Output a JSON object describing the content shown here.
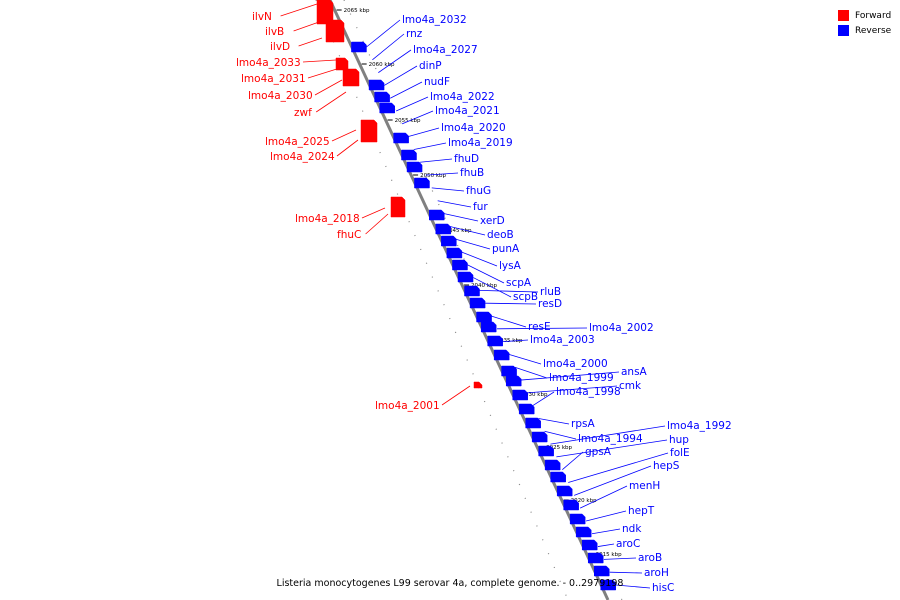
{
  "caption": "Listeria monocytogenes L99 serovar 4a, complete genome. - 0..2979198",
  "legend": [
    {
      "label": "Forward",
      "color": "#ff0000"
    },
    {
      "label": "Reverse",
      "color": "#0000ff"
    }
  ],
  "colors": {
    "forward": "#ff0000",
    "reverse": "#0000ff",
    "axis": "#808080"
  },
  "kbp_ticks": [
    {
      "value": 2065,
      "label": "2065 kbp"
    },
    {
      "value": 2060,
      "label": "2060 kbp"
    },
    {
      "value": 2055,
      "label": "2055 kbp"
    },
    {
      "value": 2050,
      "label": "2050 kbp"
    },
    {
      "value": 2045,
      "label": "2045 kbp"
    },
    {
      "value": 2040,
      "label": "2040 kbp"
    },
    {
      "value": 2035,
      "label": "2035 kbp"
    },
    {
      "value": 2030,
      "label": "2030 kbp"
    },
    {
      "value": 2025,
      "label": "2025 kbp"
    },
    {
      "value": 2020,
      "label": "2020 kbp"
    },
    {
      "value": 2015,
      "label": "2015 kbp"
    }
  ],
  "forward_genes": [
    "ilvN",
    "ilvB",
    "ilvD",
    "lmo4a_2033",
    "lmo4a_2031",
    "lmo4a_2030",
    "zwf",
    "lmo4a_2025",
    "lmo4a_2024",
    "lmo4a_2018",
    "fhuC",
    "lmo4a_2001"
  ],
  "reverse_genes": [
    "lmo4a_2032",
    "rnz",
    "lmo4a_2027",
    "dinP",
    "nudF",
    "lmo4a_2022",
    "lmo4a_2021",
    "lmo4a_2020",
    "lmo4a_2019",
    "fhuD",
    "fhuB",
    "fhuG",
    "fur",
    "xerD",
    "deoB",
    "punA",
    "lysA",
    "scpA",
    "scpB",
    "rluB",
    "resD",
    "resE",
    "lmo4a_2002",
    "lmo4a_2003",
    "lmo4a_2000",
    "lmo4a_1999",
    "ansA",
    "cmk",
    "lmo4a_1998",
    "rpsA",
    "lmo4a_1994",
    "lmo4a_1992",
    "hup",
    "gpsA",
    "folE",
    "hepS",
    "menH",
    "hepT",
    "ndk",
    "aroC",
    "aroB",
    "aroH",
    "hisC"
  ]
}
